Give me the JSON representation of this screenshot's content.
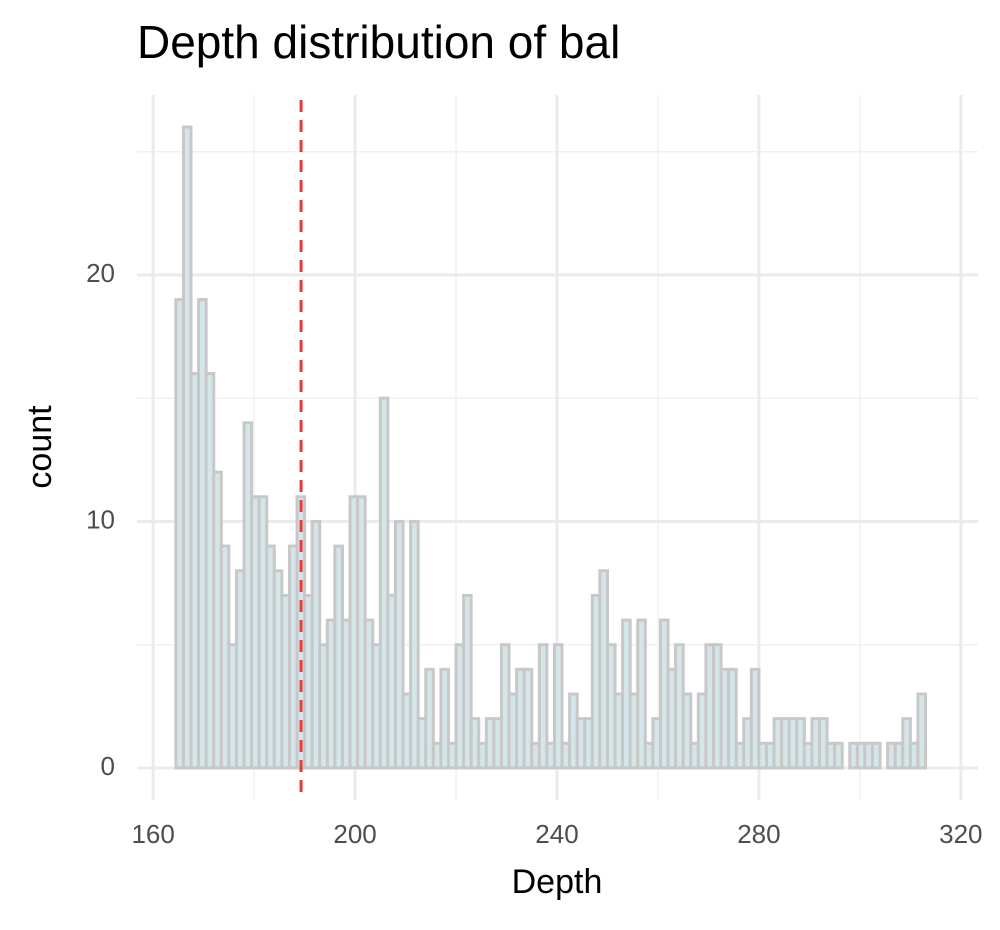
{
  "chart_data": {
    "type": "histogram",
    "title": "Depth distribution of bal",
    "x_label": "Depth",
    "y_label": "count",
    "bins": [
      164.5,
      166,
      167.5,
      169,
      170.5,
      172,
      173.5,
      175,
      176.5,
      178,
      179.5,
      181,
      182.5,
      184,
      185.5,
      187,
      188.5,
      190,
      191.5,
      193,
      194.5,
      196,
      197.5,
      199,
      200.5,
      202,
      203.5,
      205,
      206.5,
      208,
      209.5,
      211,
      212.5,
      214,
      215.5,
      217,
      218.5,
      220,
      221.5,
      223,
      224.5,
      226,
      227.5,
      229,
      230.5,
      232,
      233.5,
      235,
      236.5,
      238,
      239.5,
      241,
      242.5,
      244,
      245.5,
      247,
      248.5,
      250,
      251.5,
      253,
      254.5,
      256,
      257.5,
      259,
      260.5,
      262,
      263.5,
      265,
      266.5,
      268,
      269.5,
      271,
      272.5,
      274,
      275.5,
      277,
      278.5,
      280,
      281.5,
      283,
      284.5,
      286,
      287.5,
      289,
      290.5,
      292,
      293.5,
      295,
      296.5,
      298,
      299.5,
      301,
      302.5,
      304,
      305.5,
      307,
      308.5,
      310,
      311.5,
      313,
      314.5
    ],
    "counts": [
      19,
      26,
      16,
      19,
      16,
      12,
      9,
      5,
      8,
      14,
      11,
      11,
      9,
      8,
      7,
      9,
      11,
      7,
      10,
      5,
      6,
      9,
      6,
      11,
      11,
      6,
      5,
      15,
      7,
      10,
      3,
      10,
      2,
      4,
      1,
      4,
      1,
      5,
      7,
      2,
      1,
      2,
      2,
      5,
      3,
      4,
      4,
      1,
      5,
      1,
      5,
      1,
      3,
      2,
      2,
      7,
      8,
      5,
      3,
      6,
      3,
      6,
      1,
      2,
      6,
      4,
      5,
      3,
      1,
      3,
      5,
      5,
      4,
      4,
      1,
      2,
      4,
      1,
      1,
      2,
      2,
      2,
      2,
      1,
      2,
      2,
      1,
      1,
      0,
      1,
      1,
      1,
      1,
      0,
      1,
      1,
      2,
      1,
      3,
      0
    ],
    "fill": "#d4e6ea",
    "edge_color": "#c8c8c8",
    "vline": {
      "x": 189.3,
      "color": "#e8393b"
    },
    "xlim": [
      156.8,
      323.4
    ],
    "xticks": [
      160,
      200,
      240,
      280,
      320
    ],
    "ylim": [
      -1.3,
      27.3
    ],
    "yticks": [
      0,
      10,
      20
    ],
    "grid": true
  }
}
